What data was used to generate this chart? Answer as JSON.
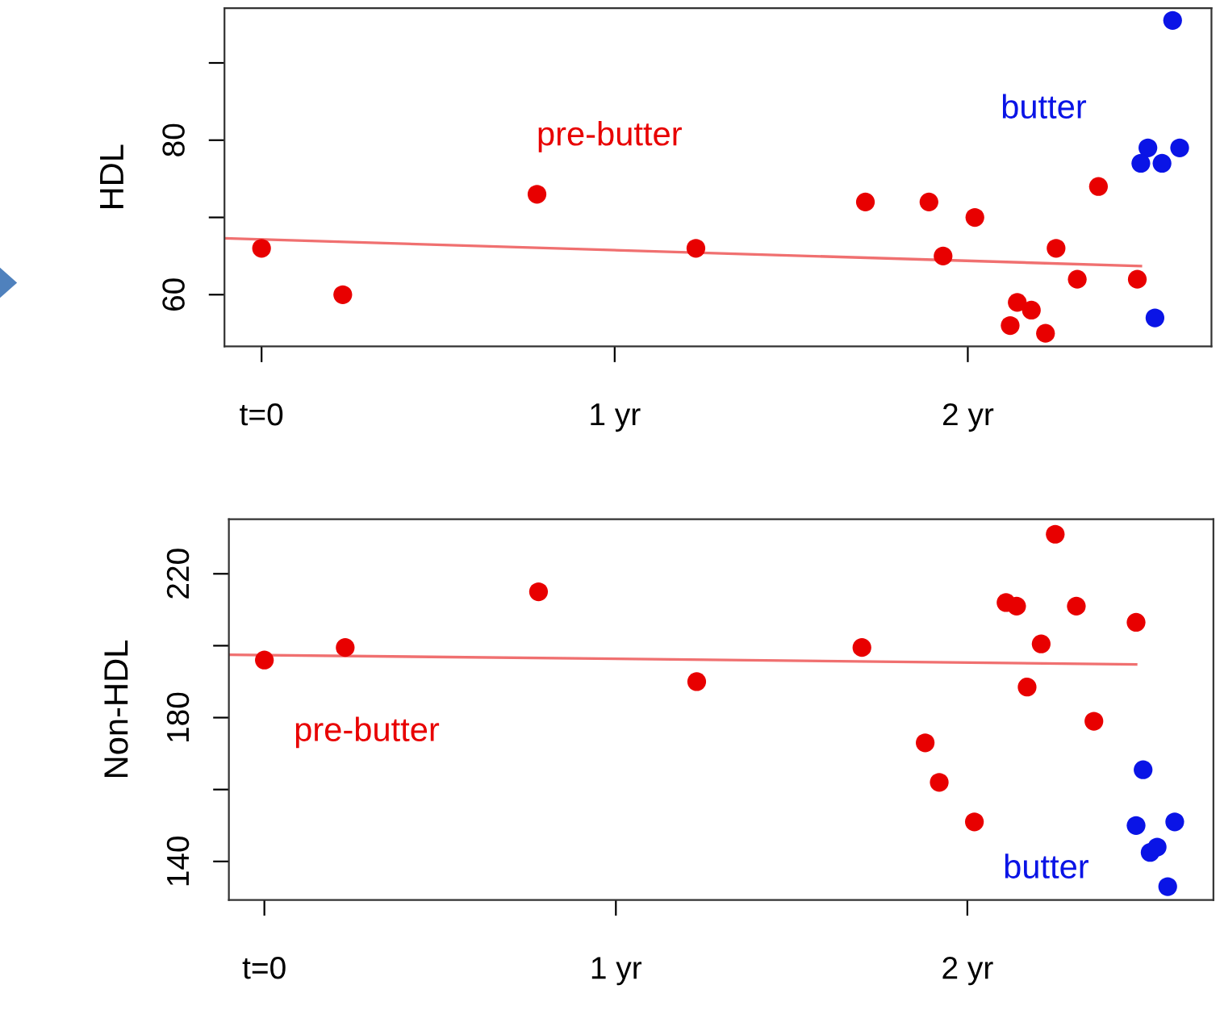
{
  "chart_data": [
    {
      "type": "scatter",
      "ylabel": "HDL",
      "xlim": [
        -0.105,
        2.69
      ],
      "ylim": [
        53.3,
        97.1
      ],
      "xticks": [
        {
          "value": 0,
          "label": "t=0"
        },
        {
          "value": 1,
          "label": "1 yr"
        },
        {
          "value": 2,
          "label": "2 yr"
        }
      ],
      "yticks": [
        60,
        {
          "value": 70,
          "label": null
        },
        80,
        {
          "value": 90,
          "label": null
        }
      ],
      "series": [
        {
          "name": "pre-butter",
          "marker": "circle",
          "color": "#e80000",
          "x": [
            0,
            0.23,
            0.78,
            1.23,
            1.71,
            1.89,
            1.93,
            2.02,
            2.25,
            2.31,
            2.37,
            2.48,
            2.14,
            2.18,
            2.12,
            2.22
          ],
          "values": [
            66,
            60,
            73,
            66,
            72,
            72,
            65,
            70,
            66,
            62,
            74,
            62,
            59,
            58,
            56,
            55
          ]
        },
        {
          "name": "butter",
          "marker": "circle",
          "color": "#0a14e6",
          "x": [
            2.58,
            2.51,
            2.49,
            2.55,
            2.6,
            2.53
          ],
          "values": [
            95.5,
            79,
            77,
            77,
            79,
            57
          ]
        },
        {
          "type": "line",
          "color": "#f07070",
          "x": [
            -0.105,
            2.49
          ],
          "values": [
            67.3,
            63.7
          ]
        }
      ]
    },
    {
      "type": "scatter",
      "ylabel": "Non-HDL",
      "xlim": [
        -0.101,
        2.7
      ],
      "ylim": [
        129.3,
        235.2
      ],
      "xticks": [
        {
          "value": 0,
          "label": "t=0"
        },
        {
          "value": 1,
          "label": "1 yr"
        },
        {
          "value": 2,
          "label": "2 yr"
        }
      ],
      "yticks": [
        140,
        {
          "value": 160,
          "label": null
        },
        180,
        {
          "value": 200,
          "label": null
        },
        220
      ],
      "series": [
        {
          "name": "pre-butter",
          "marker": "circle",
          "color": "#e80000",
          "x": [
            0,
            0.23,
            0.78,
            1.23,
            1.7,
            1.88,
            1.92,
            2.02,
            2.11,
            2.14,
            2.17,
            2.21,
            2.25,
            2.31,
            2.36,
            2.48
          ],
          "values": [
            196,
            199.5,
            215,
            190,
            199.5,
            173,
            162,
            151,
            212,
            211,
            188.5,
            200.5,
            231,
            211,
            179,
            206.5
          ]
        },
        {
          "name": "butter",
          "marker": "circle",
          "color": "#0a14e6",
          "x": [
            2.5,
            2.48,
            2.59,
            2.52,
            2.54,
            2.57
          ],
          "values": [
            165.5,
            150,
            151,
            142.5,
            144,
            133
          ]
        },
        {
          "type": "line",
          "color": "#f07070",
          "x": [
            -0.101,
            2.48
          ],
          "values": [
            197.5,
            194.8
          ]
        }
      ]
    }
  ]
}
